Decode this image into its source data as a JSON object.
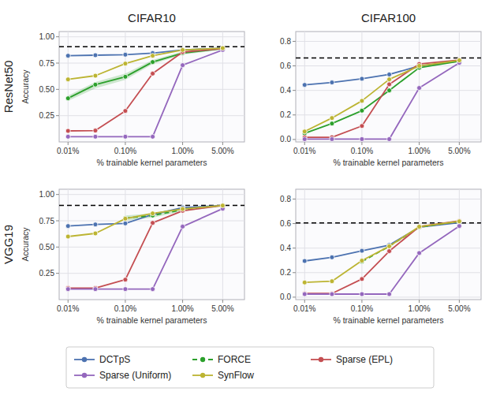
{
  "chart_data": [
    {
      "type": "line",
      "title": "CIFAR10",
      "annotations": [
        "ResNet50"
      ],
      "x_label": "% trainable kernel parameters",
      "y_label": "Accuracy",
      "log": "x",
      "grid": true,
      "x": [
        0.0001,
        0.0003,
        0.001,
        0.003,
        0.01,
        0.05
      ],
      "xlim": [
        7e-05,
        0.12
      ],
      "xticks": [
        {
          "value": 0.0001,
          "label": "0.01%"
        },
        {
          "value": 0.001,
          "label": "0.10%"
        },
        {
          "value": 0.01,
          "label": "1.00%"
        },
        {
          "value": 0.05,
          "label": "5.00%"
        }
      ],
      "ylim": [
        0.0,
        1.05
      ],
      "yticks": [
        0.25,
        {
          "value": 0.5,
          "label": "0.50"
        },
        0.75,
        {
          "value": 1.0,
          "label": "1.00"
        }
      ],
      "baseline": 0.906,
      "series": [
        {
          "name": "DCTpS",
          "color": "#4C72B0",
          "marker": "circle",
          "values": [
            0.82,
            0.825,
            0.83,
            0.845,
            0.875,
            0.892
          ]
        },
        {
          "name": "FORCE",
          "color": "#2CA02C",
          "marker": "circle",
          "line_style": "solid",
          "values": [
            0.415,
            0.545,
            0.62,
            0.76,
            0.845,
            0.888
          ],
          "lower": [
            0.39,
            0.51,
            0.59,
            0.74,
            0.83,
            0.88
          ],
          "upper": [
            0.44,
            0.57,
            0.65,
            0.78,
            0.86,
            0.895
          ]
        },
        {
          "name": "Sparse (EPL)",
          "color": "#C44E52",
          "marker": "circle",
          "values": [
            0.105,
            0.108,
            0.295,
            0.65,
            0.855,
            0.888
          ]
        },
        {
          "name": "Sparse (Uniform)",
          "color": "#9467BD",
          "marker": "circle",
          "values": [
            0.05,
            0.05,
            0.05,
            0.05,
            0.73,
            0.875
          ]
        },
        {
          "name": "SynFlow",
          "color": "#BCB432",
          "marker": "circle",
          "values": [
            0.595,
            0.63,
            0.745,
            0.82,
            0.875,
            0.892
          ]
        }
      ]
    },
    {
      "type": "line",
      "title": "CIFAR100",
      "x_label": "% trainable kernel parameters",
      "log": "x",
      "grid": true,
      "x": [
        0.0001,
        0.0003,
        0.001,
        0.003,
        0.01,
        0.05
      ],
      "xlim": [
        7e-05,
        0.12
      ],
      "xticks": [
        {
          "value": 0.0001,
          "label": "0.01%"
        },
        {
          "value": 0.001,
          "label": "0.10%"
        },
        {
          "value": 0.01,
          "label": "1.00%"
        },
        {
          "value": 0.05,
          "label": "5.00%"
        }
      ],
      "ylim": [
        -0.02,
        0.88
      ],
      "yticks": [
        {
          "value": 0.0,
          "label": "0.0"
        },
        0.2,
        0.4,
        0.6,
        0.8
      ],
      "baseline": 0.665,
      "series": [
        {
          "name": "DCTpS",
          "color": "#4C72B0",
          "marker": "circle",
          "values": [
            0.445,
            0.465,
            0.495,
            0.53,
            0.6,
            0.638
          ]
        },
        {
          "name": "FORCE",
          "color": "#2CA02C",
          "marker": "circle",
          "line_style": "solid",
          "values": [
            0.05,
            0.13,
            0.235,
            0.4,
            0.585,
            0.638
          ]
        },
        {
          "name": "Sparse (EPL)",
          "color": "#C44E52",
          "marker": "circle",
          "values": [
            0.018,
            0.018,
            0.11,
            0.45,
            0.615,
            0.648
          ]
        },
        {
          "name": "Sparse (Uniform)",
          "color": "#9467BD",
          "marker": "circle",
          "values": [
            0.003,
            0.003,
            0.003,
            0.003,
            0.42,
            0.625
          ]
        },
        {
          "name": "SynFlow",
          "color": "#BCB432",
          "marker": "circle",
          "values": [
            0.065,
            0.175,
            0.315,
            0.49,
            0.6,
            0.645
          ]
        }
      ]
    },
    {
      "type": "line",
      "annotations": [
        "VGG19"
      ],
      "x_label": "% trainable kernel parameters",
      "y_label": "Accuracy",
      "log": "x",
      "grid": true,
      "legend": "bottom",
      "x": [
        0.0001,
        0.0003,
        0.001,
        0.003,
        0.01,
        0.05
      ],
      "xlim": [
        7e-05,
        0.12
      ],
      "xticks": [
        {
          "value": 0.0001,
          "label": "0.01%"
        },
        {
          "value": 0.001,
          "label": "0.10%"
        },
        {
          "value": 0.01,
          "label": "1.00%"
        },
        {
          "value": 0.05,
          "label": "5.00%"
        }
      ],
      "ylim": [
        0.0,
        1.05
      ],
      "yticks": [
        0.25,
        {
          "value": 0.5,
          "label": "0.50"
        },
        0.75,
        {
          "value": 1.0,
          "label": "1.00"
        }
      ],
      "baseline": 0.896,
      "series": [
        {
          "name": "DCTpS",
          "color": "#4C72B0",
          "marker": "circle",
          "values": [
            0.7,
            0.715,
            0.725,
            0.81,
            0.875,
            0.895
          ]
        },
        {
          "name": "FORCE",
          "color": "#2CA02C",
          "marker": "circle",
          "line_style": "dashed",
          "values": [
            null,
            null,
            0.775,
            0.8,
            0.855,
            0.895
          ],
          "lower": [
            null,
            null,
            0.75,
            0.78,
            0.84,
            0.885
          ],
          "upper": [
            null,
            null,
            0.8,
            0.82,
            0.868,
            0.905
          ]
        },
        {
          "name": "Sparse (EPL)",
          "color": "#C44E52",
          "marker": "circle",
          "values": [
            0.11,
            0.11,
            0.19,
            0.73,
            0.845,
            0.895
          ]
        },
        {
          "name": "Sparse (Uniform)",
          "color": "#9467BD",
          "marker": "circle",
          "values": [
            0.1,
            0.1,
            0.1,
            0.1,
            0.695,
            0.865
          ]
        },
        {
          "name": "SynFlow",
          "color": "#BCB432",
          "marker": "circle",
          "values": [
            0.6,
            0.63,
            0.77,
            0.82,
            0.862,
            0.895
          ]
        }
      ]
    },
    {
      "type": "line",
      "x_label": "% trainable kernel parameters",
      "log": "x",
      "grid": true,
      "x": [
        0.0001,
        0.0003,
        0.001,
        0.003,
        0.01,
        0.05
      ],
      "xlim": [
        7e-05,
        0.12
      ],
      "xticks": [
        {
          "value": 0.0001,
          "label": "0.01%"
        },
        {
          "value": 0.001,
          "label": "0.10%"
        },
        {
          "value": 0.01,
          "label": "1.00%"
        },
        {
          "value": 0.05,
          "label": "5.00%"
        }
      ],
      "ylim": [
        -0.02,
        0.88
      ],
      "yticks": [
        {
          "value": 0.0,
          "label": "0.0"
        },
        0.2,
        0.4,
        0.6,
        0.8
      ],
      "baseline": 0.605,
      "series": [
        {
          "name": "DCTpS",
          "color": "#4C72B0",
          "marker": "circle",
          "values": [
            0.295,
            0.325,
            0.378,
            0.425,
            0.57,
            0.608
          ]
        },
        {
          "name": "FORCE",
          "color": "#2CA02C",
          "marker": "circle",
          "line_style": "dashed",
          "values": [
            null,
            null,
            0.29,
            0.415,
            0.57,
            0.618
          ]
        },
        {
          "name": "Sparse (EPL)",
          "color": "#C44E52",
          "marker": "circle",
          "values": [
            0.03,
            0.03,
            0.148,
            0.375,
            0.575,
            0.622
          ]
        },
        {
          "name": "Sparse (Uniform)",
          "color": "#9467BD",
          "marker": "circle",
          "values": [
            0.025,
            0.025,
            0.025,
            0.025,
            0.36,
            0.58
          ]
        },
        {
          "name": "SynFlow",
          "color": "#BCB432",
          "marker": "circle",
          "values": [
            0.12,
            0.13,
            0.298,
            0.415,
            0.575,
            0.618
          ]
        }
      ]
    }
  ]
}
